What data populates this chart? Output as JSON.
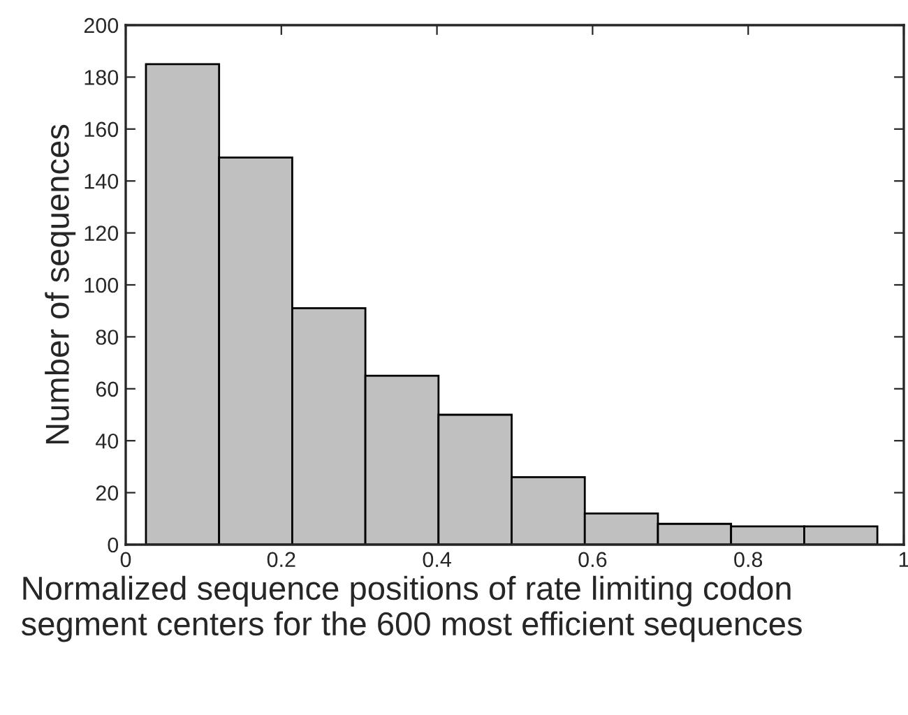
{
  "chart_data": {
    "type": "histogram",
    "xlabel": "Normalized sequence positions of rate limiting codon segment centers for the 600 most efficient sequences",
    "ylabel": "Number of sequences",
    "bins": [
      0.026,
      0.12,
      0.214,
      0.308,
      0.402,
      0.496,
      0.59,
      0.684,
      0.778,
      0.872,
      0.966
    ],
    "values": [
      185,
      149,
      91,
      65,
      50,
      26,
      12,
      8,
      7,
      7
    ],
    "color": "#c0c0c0",
    "xlim": [
      0,
      1
    ],
    "ylim": [
      0,
      200
    ],
    "xticks": [
      0,
      0.2,
      0.4,
      0.6,
      0.8,
      1
    ],
    "yticks": [
      0,
      20,
      40,
      60,
      80,
      100,
      120,
      140,
      160,
      180,
      200
    ],
    "grid": false
  }
}
